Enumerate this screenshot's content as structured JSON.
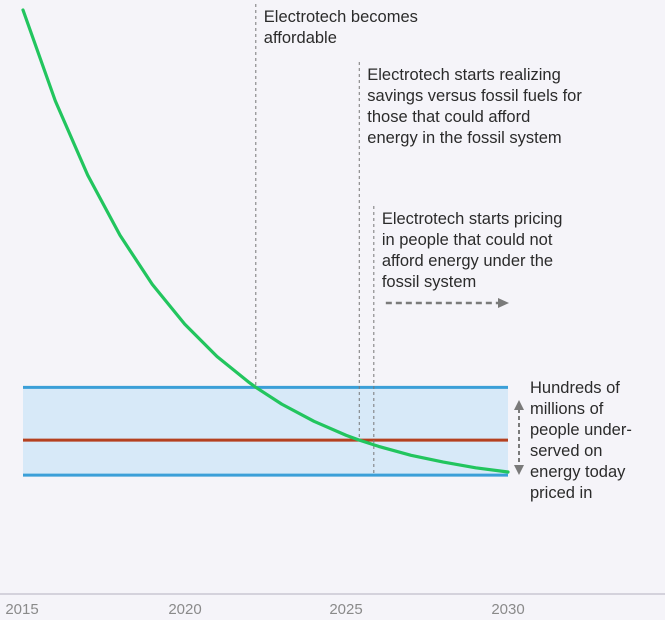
{
  "chart_data": {
    "type": "line",
    "x_ticks": [
      "2015",
      "2020",
      "2025",
      "2030"
    ],
    "xlim": [
      2015,
      2030
    ],
    "colors": {
      "background": "#f5f4f9",
      "band_fill": "#d7e9f8",
      "band_line": "#3b9fd8",
      "mid_line": "#b5401f",
      "cost_curve": "#22c55e",
      "guide": "#777777",
      "axis": "#c9c6d3",
      "arrow": "#7a7a7a"
    },
    "series": [
      {
        "x": [
          2015.0,
          2016.0,
          2017.0,
          2018.0,
          2019.0,
          2020.0,
          2021.0,
          2022.0,
          2022.2,
          2023.0,
          2024.0,
          2025.0,
          2025.4,
          2026.0,
          2027.0,
          2028.0,
          2029.0,
          2030.0
        ],
        "y": [
          100.0,
          82.6,
          68.4,
          56.9,
          47.5,
          39.9,
          33.7,
          28.7,
          27.8,
          24.6,
          21.3,
          18.6,
          17.7,
          16.5,
          14.8,
          13.5,
          12.4,
          11.6
        ]
      }
    ],
    "bands": {
      "upper": 27.8,
      "middle": 17.7,
      "lower": 11.0
    },
    "events": [
      {
        "x": 2022.2,
        "lines": [
          "Electrotech becomes",
          "affordable"
        ]
      },
      {
        "x": 2025.4,
        "lines": [
          "Electrotech starts realizing",
          "savings versus fossil fuels for",
          "those that could afford",
          "energy in the fossil system"
        ]
      },
      {
        "x": 2025.85,
        "lines": [
          "Electrotech starts pricing",
          "in people that could not",
          "afford energy under the",
          "fossil system"
        ]
      }
    ],
    "range_annotation": {
      "lines": [
        "Hundreds of",
        "millions of",
        "people under-",
        "served on",
        "energy today",
        "priced in"
      ]
    }
  }
}
